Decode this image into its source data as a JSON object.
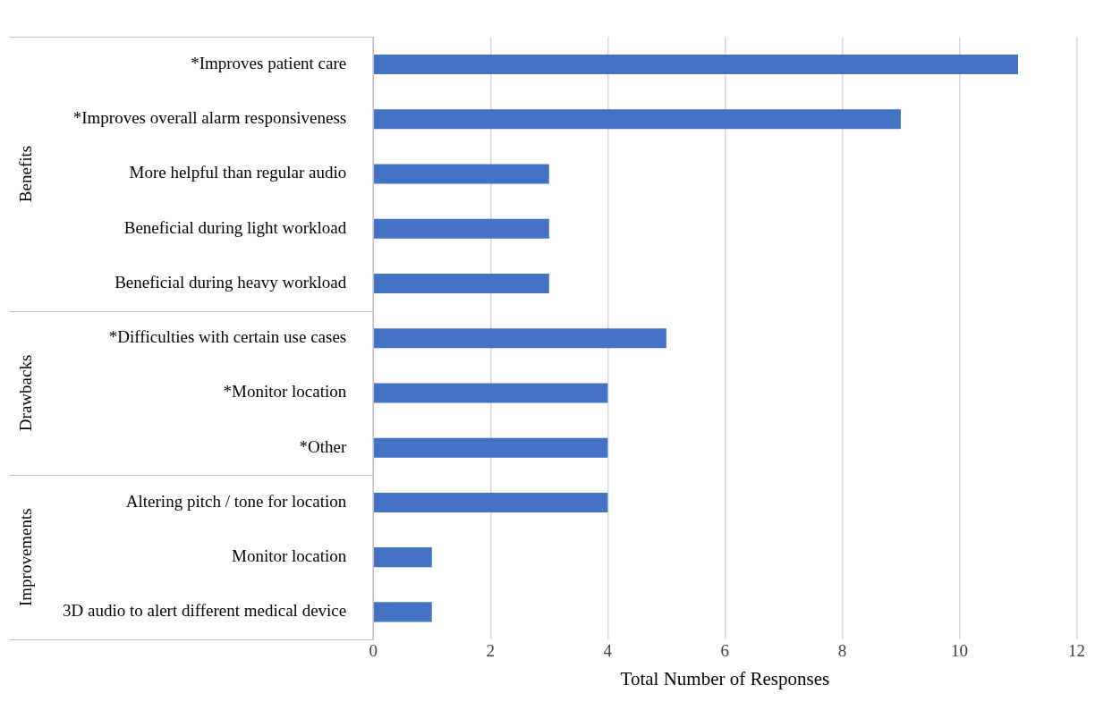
{
  "chart_data": {
    "type": "bar",
    "orientation": "horizontal",
    "xlabel": "Total Number of Responses",
    "categories": [
      "*Improves patient care",
      "*Improves overall alarm responsiveness",
      "More helpful than regular audio",
      "Beneficial during light workload",
      "Beneficial during heavy workload",
      "*Difficulties with certain use cases",
      "*Monitor location",
      "*Other",
      "Altering pitch / tone for location",
      "Monitor location",
      "3D audio to alert different medical device"
    ],
    "values": [
      11,
      9,
      3,
      3,
      3,
      5,
      4,
      4,
      4,
      1,
      1
    ],
    "color": "#4472c4",
    "xlim": [
      0,
      12
    ],
    "xticks": [
      0,
      2,
      4,
      6,
      8,
      10,
      12
    ],
    "grid": "x",
    "legend": false,
    "annotations": [
      "Benefits",
      "Drawbacks",
      "Improvements"
    ]
  }
}
